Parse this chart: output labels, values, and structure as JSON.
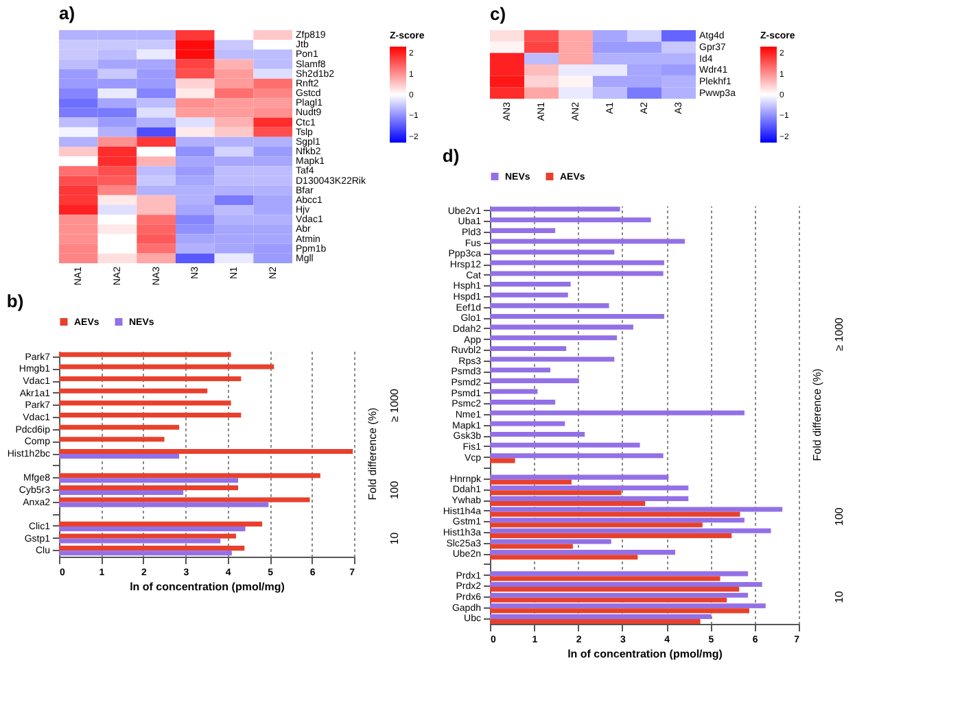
{
  "chart_data": [
    {
      "type": "heatmap",
      "title": "a)",
      "clabel": "Z-score",
      "clim": [
        -2.3,
        2.3
      ],
      "cticks": [
        -2,
        -1,
        0,
        1,
        2
      ],
      "categories": [
        "NA1",
        "NA2",
        "NA3",
        "N3",
        "N1",
        "N2"
      ],
      "y_categories": [
        "Zfp819",
        "Jtb",
        "Pon1",
        "Slamf8",
        "Sh2d1b2",
        "Rnft2",
        "Gstcd",
        "Plagl1",
        "Nudt9",
        "Ctc1",
        "Tslp",
        "Sgpl1",
        "Nfkb2",
        "Mapk1",
        "Taf4",
        "D130043K22Rik",
        "Bfar",
        "Abcc1",
        "Hjv",
        "Vdac1",
        "Abr",
        "Atmin",
        "Ppm1b",
        "Mgll"
      ],
      "cells": [
        [
          -0.7,
          -0.7,
          -0.7,
          1.8,
          0,
          0.5
        ],
        [
          -0.5,
          -0.5,
          -0.5,
          2.2,
          -0.5,
          0
        ],
        [
          -0.5,
          -0.6,
          -0.2,
          2.2,
          -0.6,
          -0.6
        ],
        [
          -0.6,
          -0.8,
          -0.8,
          1.7,
          0.7,
          -0.6
        ],
        [
          -0.9,
          -0.5,
          -0.9,
          1.6,
          0.9,
          -0.3
        ],
        [
          -0.9,
          -0.9,
          -0.9,
          0.4,
          0.9,
          1.3
        ],
        [
          -1.1,
          -0.2,
          -1.1,
          0.2,
          1.3,
          1.1
        ],
        [
          -1.3,
          -0.8,
          -0.6,
          1.0,
          0.9,
          0.9
        ],
        [
          -1.2,
          -1.2,
          -0.3,
          0.9,
          0.9,
          1.0
        ],
        [
          -0.6,
          -0.9,
          -0.7,
          -0.3,
          0.7,
          1.9
        ],
        [
          -0.1,
          -0.7,
          -1.6,
          0.2,
          0.5,
          1.6
        ],
        [
          -0.7,
          1.0,
          1.8,
          -0.7,
          -0.7,
          -0.7
        ],
        [
          0.5,
          1.9,
          0,
          -1.0,
          -0.4,
          -0.9
        ],
        [
          0,
          1.9,
          0.7,
          -0.8,
          -0.8,
          -0.8
        ],
        [
          1.3,
          1.6,
          -0.6,
          -0.9,
          -0.6,
          -0.6
        ],
        [
          1.6,
          1.5,
          -0.5,
          -0.8,
          -0.6,
          -0.6
        ],
        [
          1.8,
          1.1,
          -0.7,
          -0.7,
          -0.7,
          -0.7
        ],
        [
          1.8,
          0.2,
          0.6,
          -0.7,
          -1.2,
          -0.8
        ],
        [
          2.0,
          -0.3,
          0.6,
          -0.8,
          -0.6,
          -0.8
        ],
        [
          1.0,
          0,
          1.3,
          -1.1,
          -0.7,
          -0.7
        ],
        [
          1.0,
          0.2,
          1.4,
          -1.0,
          -0.8,
          -0.8
        ],
        [
          1.0,
          0,
          1.5,
          -0.8,
          -0.8,
          -0.8
        ],
        [
          1.1,
          0,
          1.3,
          -0.7,
          -0.8,
          -0.9
        ],
        [
          1.1,
          0.3,
          0.8,
          -1.5,
          -0.2,
          -0.9
        ]
      ]
    },
    {
      "type": "bar",
      "title": "b)",
      "orientation": "horizontal",
      "xlabel": "ln of concentration (pmol/mg)",
      "xlim": [
        0,
        7
      ],
      "xticks": [
        0,
        1,
        2,
        3,
        4,
        5,
        6,
        7
      ],
      "grid": "x",
      "legend": "top",
      "categories": [
        "Park7",
        "Hmgb1",
        "Vdac1",
        "Akr1a1",
        "Park7",
        "Vdac1",
        "Pdcd6ip",
        "Comp",
        "Hist1h2bc",
        null,
        "Mfge8",
        "Cyb5r3",
        "Anxa2",
        null,
        "Clic1",
        "Gstp1",
        "Clu"
      ],
      "series": [
        {
          "name": "AEVs",
          "color": "#e8402c",
          "values": [
            4.08,
            5.1,
            4.32,
            3.52,
            4.08,
            4.32,
            2.85,
            2.5,
            6.97,
            null,
            6.2,
            4.25,
            5.95,
            null,
            4.82,
            4.2,
            4.4
          ]
        },
        {
          "name": "NEVs",
          "color": "#9370e6",
          "values": [
            null,
            null,
            null,
            null,
            null,
            null,
            null,
            null,
            2.85,
            null,
            4.25,
            2.95,
            4.97,
            null,
            4.42,
            3.83,
            4.1
          ]
        }
      ],
      "annotations": [
        "≥ 1000",
        "100",
        "10",
        "Fold difference (%)"
      ]
    },
    {
      "type": "heatmap",
      "title": "c)",
      "clabel": "Z-score",
      "clim": [
        -2.3,
        2.3
      ],
      "cticks": [
        -2,
        -1,
        0,
        1,
        2
      ],
      "categories": [
        "AN3",
        "AN1",
        "AN2",
        "A1",
        "A2",
        "A3"
      ],
      "y_categories": [
        "Atg4d",
        "Gpr37",
        "Id4",
        "Wdr41",
        "Plekhf1",
        "Pwwp3a"
      ],
      "cells": [
        [
          0.3,
          1.6,
          0.8,
          -0.8,
          -0.4,
          -1.4
        ],
        [
          0.1,
          1.7,
          0.8,
          -0.9,
          -0.9,
          -0.5
        ],
        [
          2.0,
          -0.6,
          0.8,
          -0.7,
          -0.7,
          -0.7
        ],
        [
          2.0,
          0.6,
          -0.2,
          -0.2,
          -0.8,
          -0.9
        ],
        [
          2.1,
          0.4,
          0.1,
          -0.8,
          -0.8,
          -0.7
        ],
        [
          1.9,
          0.8,
          -0.2,
          -0.6,
          -1.2,
          -0.7
        ]
      ]
    },
    {
      "type": "bar",
      "title": "d)",
      "orientation": "horizontal",
      "xlabel": "ln of concentration (pmol/mg)",
      "xlim": [
        0,
        7
      ],
      "xticks": [
        0,
        1,
        2,
        3,
        4,
        5,
        6,
        7
      ],
      "grid": "x",
      "legend": "top",
      "categories": [
        "Ube2v1",
        "Uba1",
        "Pld3",
        "Fus",
        "Ppp3ca",
        "Hrsp12",
        "Cat",
        "Hsph1",
        "Hspd1",
        "Eef1d",
        "Glo1",
        "Ddah2",
        "App",
        "Ruvbl2",
        "Rps3",
        "Psmd3",
        "Psmd2",
        "Psmd1",
        "Psmc2",
        "Nme1",
        "Mapk1",
        "Gsk3b",
        "Fis1",
        "Vcp",
        null,
        "Hnrnpk",
        "Ddah1",
        "Ywhab",
        "Hist1h4a",
        "Gstm1",
        "Hist1h3a",
        "Slc25a3",
        "Ube2n",
        null,
        "Prdx1",
        "Prdx2",
        "Prdx6",
        "Gapdh",
        "Ubc"
      ],
      "series": [
        {
          "name": "NEVs",
          "color": "#9370e6",
          "values": [
            2.95,
            3.65,
            1.48,
            4.42,
            2.82,
            3.95,
            3.93,
            1.83,
            1.77,
            2.7,
            3.95,
            3.25,
            2.88,
            1.73,
            2.82,
            1.37,
            2.02,
            1.08,
            1.48,
            5.77,
            1.7,
            2.15,
            3.4,
            3.93,
            null,
            4.05,
            4.5,
            4.5,
            6.63,
            5.77,
            6.37,
            2.75,
            4.2,
            null,
            5.85,
            6.17,
            5.85,
            6.25,
            5.02
          ]
        },
        {
          "name": "AEVs",
          "color": "#e8402c",
          "values": [
            null,
            null,
            null,
            null,
            null,
            null,
            null,
            null,
            null,
            null,
            null,
            null,
            null,
            null,
            null,
            null,
            null,
            null,
            null,
            null,
            null,
            null,
            null,
            0.57,
            null,
            1.85,
            2.98,
            3.52,
            5.67,
            4.82,
            5.48,
            1.88,
            3.35,
            null,
            5.22,
            5.65,
            5.37,
            5.88,
            4.77
          ]
        }
      ],
      "annotations": [
        "≥ 1000",
        "100",
        "10",
        "Fold difference (%)"
      ]
    }
  ]
}
